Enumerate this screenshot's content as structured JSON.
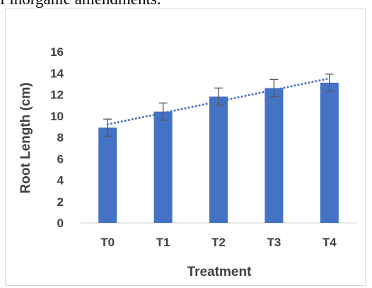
{
  "caption_fragment": "f inorganic amendments.",
  "colors": {
    "bar": "#4472c4",
    "trendline": "#4472c4",
    "error_bar": "#595959",
    "axis_line": "#d9d9d9",
    "text": "#404040"
  },
  "chart_data": {
    "type": "bar",
    "title": "",
    "xlabel": "Treatment",
    "ylabel": "Root Length (cm)",
    "categories": [
      "T0",
      "T1",
      "T2",
      "T3",
      "T4"
    ],
    "values": [
      8.9,
      10.4,
      11.8,
      12.6,
      13.1
    ],
    "error": [
      0.8,
      0.8,
      0.8,
      0.8,
      0.8
    ],
    "ylim": [
      0,
      16
    ],
    "yticks": [
      0,
      2,
      4,
      6,
      8,
      10,
      12,
      14,
      16
    ],
    "grid": false,
    "legend": "none",
    "trendline": {
      "type": "linear",
      "style": "dotted",
      "start": 9.2,
      "end": 13.5
    }
  }
}
